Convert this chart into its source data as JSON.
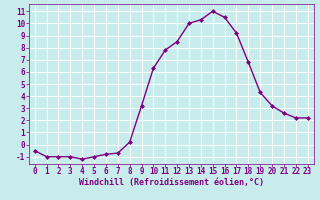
{
  "x": [
    0,
    1,
    2,
    3,
    4,
    5,
    6,
    7,
    8,
    9,
    10,
    11,
    12,
    13,
    14,
    15,
    16,
    17,
    18,
    19,
    20,
    21,
    22,
    23
  ],
  "y": [
    -0.5,
    -1.0,
    -1.0,
    -1.0,
    -1.2,
    -1.0,
    -0.8,
    -0.7,
    0.2,
    3.2,
    6.3,
    7.8,
    8.5,
    10.0,
    10.3,
    11.0,
    10.5,
    9.2,
    6.8,
    4.3,
    3.2,
    2.6,
    2.2,
    2.2
  ],
  "line_color": "#800080",
  "marker": "D",
  "marker_size": 2.0,
  "bg_color": "#c8ecec",
  "grid_color": "#ffffff",
  "xlabel": "Windchill (Refroidissement éolien,°C)",
  "xlabel_color": "#800080",
  "tick_color": "#800080",
  "spine_color": "#800080",
  "ylim": [
    -1.6,
    11.6
  ],
  "xlim": [
    -0.5,
    23.5
  ],
  "yticks": [
    -1,
    0,
    1,
    2,
    3,
    4,
    5,
    6,
    7,
    8,
    9,
    10,
    11
  ],
  "xticks": [
    0,
    1,
    2,
    3,
    4,
    5,
    6,
    7,
    8,
    9,
    10,
    11,
    12,
    13,
    14,
    15,
    16,
    17,
    18,
    19,
    20,
    21,
    22,
    23
  ],
  "tick_fontsize": 5.5,
  "xlabel_fontsize": 6.0,
  "linewidth": 1.0
}
